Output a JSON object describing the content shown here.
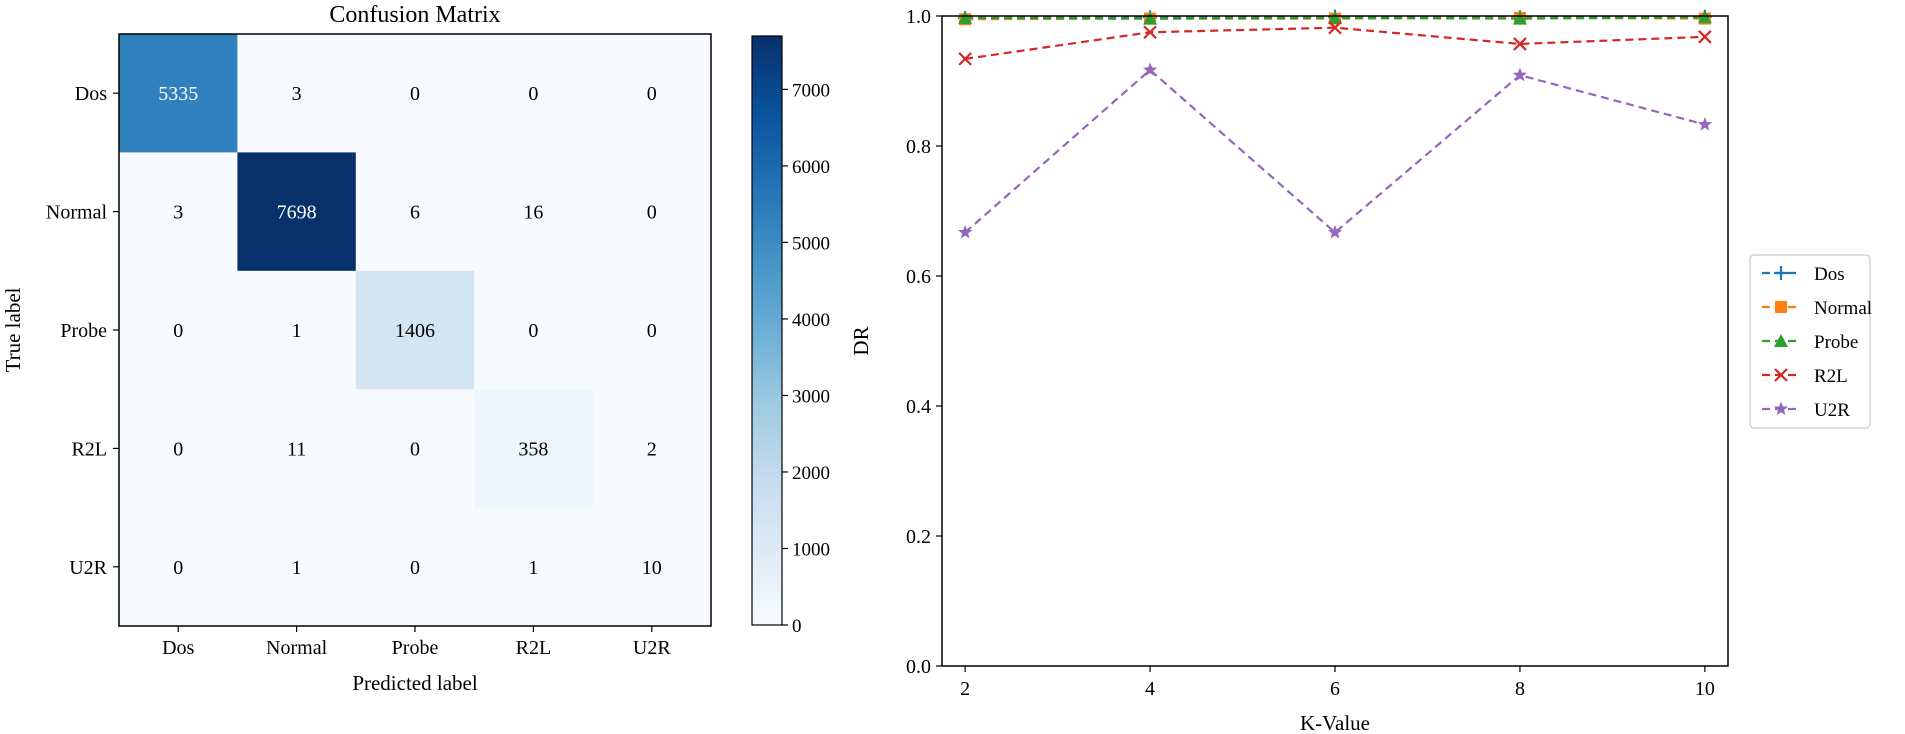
{
  "chart_data": [
    {
      "type": "heatmap",
      "title": "Confusion Matrix",
      "xlabel": "Predicted label",
      "ylabel": "True label",
      "row_labels": [
        "Dos",
        "Normal",
        "Probe",
        "R2L",
        "U2R"
      ],
      "col_labels": [
        "Dos",
        "Normal",
        "Probe",
        "R2L",
        "U2R"
      ],
      "values": [
        [
          5335,
          3,
          0,
          0,
          0
        ],
        [
          3,
          7698,
          6,
          16,
          0
        ],
        [
          0,
          1,
          1406,
          0,
          0
        ],
        [
          0,
          11,
          0,
          358,
          2
        ],
        [
          0,
          1,
          0,
          1,
          10
        ]
      ],
      "colormap": "Blues",
      "colorbar": {
        "range": [
          0,
          7698
        ],
        "ticks": [
          0,
          1000,
          2000,
          3000,
          4000,
          5000,
          6000,
          7000
        ],
        "tick_labels": [
          "0",
          "1000",
          "2000",
          "3000",
          "4000",
          "5000",
          "6000",
          "7000"
        ]
      }
    },
    {
      "type": "line",
      "title": "",
      "xlabel": "K-Value",
      "ylabel": "DR",
      "x": [
        2,
        4,
        6,
        8,
        10
      ],
      "xlim": [
        1.75,
        10.25
      ],
      "ylim": [
        0.0,
        1.0
      ],
      "x_ticks": [
        2,
        4,
        6,
        8,
        10
      ],
      "x_tick_labels": [
        "2",
        "4",
        "6",
        "8",
        "10"
      ],
      "y_ticks": [
        0.0,
        0.2,
        0.4,
        0.6,
        0.8,
        1.0
      ],
      "y_tick_labels": [
        "0.0",
        "0.2",
        "0.4",
        "0.6",
        "0.8",
        "1.0"
      ],
      "grid": false,
      "legend_position": "right-center",
      "series": [
        {
          "name": "Dos",
          "values": [
            0.997,
            0.998,
            0.999,
            0.998,
            0.999
          ],
          "color": "#1f77b4",
          "marker": "plus"
        },
        {
          "name": "Normal",
          "values": [
            0.995,
            0.996,
            0.996,
            0.997,
            0.996
          ],
          "color": "#ff7f0e",
          "marker": "square"
        },
        {
          "name": "Probe",
          "values": [
            0.997,
            0.996,
            0.997,
            0.996,
            0.998
          ],
          "color": "#2ca02c",
          "marker": "triangle"
        },
        {
          "name": "R2L",
          "values": [
            0.934,
            0.975,
            0.982,
            0.957,
            0.968
          ],
          "color": "#d62728",
          "marker": "x"
        },
        {
          "name": "U2R",
          "values": [
            0.667,
            0.917,
            0.667,
            0.909,
            0.833
          ],
          "color": "#9467bd",
          "marker": "star"
        }
      ]
    }
  ]
}
